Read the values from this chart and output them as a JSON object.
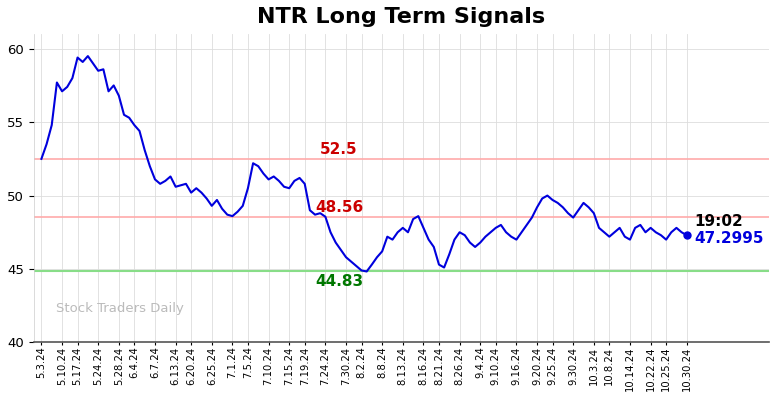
{
  "title": "NTR Long Term Signals",
  "title_fontsize": 16,
  "title_fontweight": "bold",
  "ylim": [
    40,
    61
  ],
  "yticks": [
    40,
    45,
    50,
    55,
    60
  ],
  "line_color": "#0000dd",
  "line_width": 1.5,
  "hline_red1": 52.5,
  "hline_red2": 48.56,
  "hline_green": 44.83,
  "hline_red_color": "#ffaaaa",
  "hline_green_color": "#88dd88",
  "ann_52_text": "52.5",
  "ann_52_color": "#cc0000",
  "ann_48_text": "48.56",
  "ann_48_color": "#cc0000",
  "ann_44_text": "44.83",
  "ann_44_color": "#007700",
  "ann_time_text": "19:02",
  "ann_price_text": "47.2995",
  "ann_fontsize": 11,
  "watermark": "Stock Traders Daily",
  "watermark_color": "#bbbbbb",
  "bg_color": "#ffffff",
  "grid_color": "#dddddd",
  "xtick_labels": [
    "5.3.24",
    "5.10.24",
    "5.17.24",
    "5.24.24",
    "5.28.24",
    "6.4.24",
    "6.7.24",
    "6.13.24",
    "6.20.24",
    "6.25.24",
    "7.1.24",
    "7.5.24",
    "7.10.24",
    "7.15.24",
    "7.19.24",
    "7.24.24",
    "7.30.24",
    "8.2.24",
    "8.8.24",
    "8.13.24",
    "8.16.24",
    "8.21.24",
    "8.26.24",
    "9.4.24",
    "9.10.24",
    "9.16.24",
    "9.20.24",
    "9.25.24",
    "9.30.24",
    "10.3.24",
    "10.8.24",
    "10.14.24",
    "10.22.24",
    "10.25.24",
    "10.30.24"
  ],
  "prices": [
    52.5,
    53.5,
    54.8,
    57.7,
    57.1,
    57.4,
    58.0,
    59.4,
    59.1,
    59.5,
    59.0,
    58.5,
    58.6,
    57.1,
    57.5,
    56.8,
    55.5,
    55.3,
    54.8,
    54.4,
    53.1,
    52.0,
    51.1,
    50.8,
    51.0,
    51.3,
    50.6,
    50.7,
    50.8,
    50.2,
    50.5,
    50.2,
    49.8,
    49.3,
    49.7,
    49.1,
    48.7,
    48.6,
    48.9,
    49.3,
    50.5,
    52.2,
    52.0,
    51.5,
    51.1,
    51.3,
    51.0,
    50.6,
    50.5,
    51.0,
    51.2,
    50.8,
    49.0,
    48.7,
    48.8,
    48.56,
    47.5,
    46.8,
    46.3,
    45.8,
    45.5,
    45.2,
    44.9,
    44.83,
    45.3,
    45.8,
    46.2,
    47.2,
    47.0,
    47.5,
    47.8,
    47.5,
    48.4,
    48.6,
    47.8,
    47.0,
    46.5,
    45.3,
    45.1,
    46.0,
    47.0,
    47.5,
    47.3,
    46.8,
    46.5,
    46.8,
    47.2,
    47.5,
    47.8,
    48.0,
    47.5,
    47.2,
    47.0,
    47.5,
    48.0,
    48.5,
    49.2,
    49.8,
    50.0,
    49.7,
    49.5,
    49.2,
    48.8,
    48.5,
    49.0,
    49.5,
    49.2,
    48.8,
    47.8,
    47.5,
    47.2,
    47.5,
    47.8,
    47.2,
    47.0,
    47.8,
    48.0,
    47.5,
    47.8,
    47.5,
    47.3,
    47.0,
    47.5,
    47.8,
    47.5,
    47.2995
  ]
}
